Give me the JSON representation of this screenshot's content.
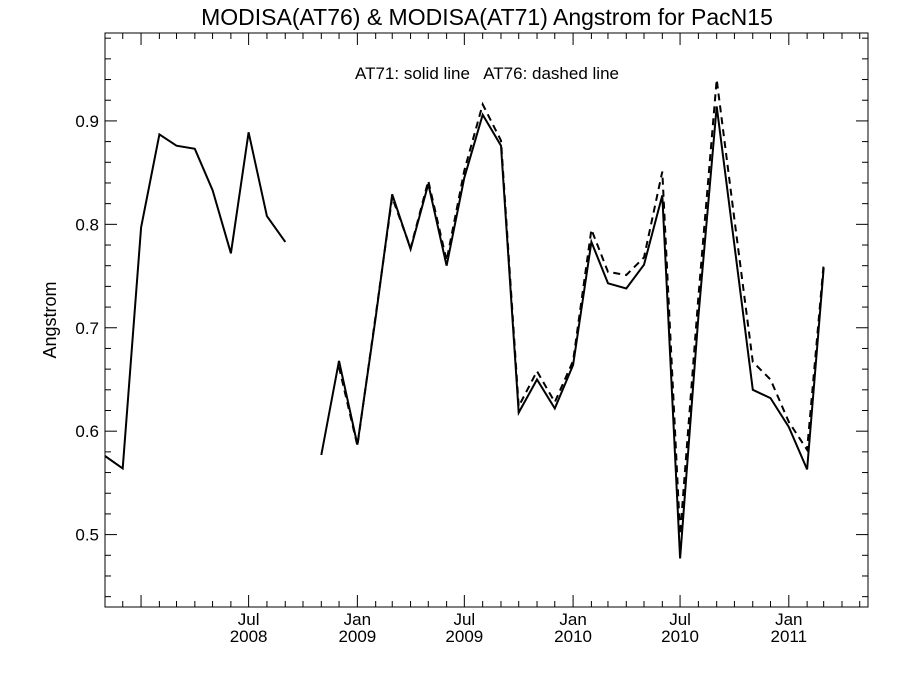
{
  "chart_data": {
    "type": "line",
    "title": "MODISA(AT76) & MODISA(AT71)  Angstrom for PacN15",
    "annotation": "AT71: solid line   AT76: dashed line",
    "xlabel": "",
    "ylabel": "Angstrom",
    "ylim": [
      0.43,
      0.985
    ],
    "yticks": [
      "0.5",
      "0.6",
      "0.7",
      "0.8",
      "0.9"
    ],
    "xlim": [
      "2007-11-01",
      "2011-05-15"
    ],
    "x_tick_labels": [
      {
        "date": "2008-07-01",
        "month": "Jul",
        "year": "2008"
      },
      {
        "date": "2009-01-01",
        "month": "Jan",
        "year": "2009"
      },
      {
        "date": "2009-07-01",
        "month": "Jul",
        "year": "2009"
      },
      {
        "date": "2010-01-01",
        "month": "Jan",
        "year": "2010"
      },
      {
        "date": "2010-07-01",
        "month": "Jul",
        "year": "2010"
      },
      {
        "date": "2011-01-01",
        "month": "Jan",
        "year": "2011"
      }
    ],
    "grid": false,
    "x": [
      "2007-11",
      "2007-12",
      "2008-01",
      "2008-02",
      "2008-03",
      "2008-04",
      "2008-05",
      "2008-06",
      "2008-07",
      "2008-08",
      "2008-09",
      "2008-10",
      "2008-11",
      "2008-12",
      "2009-01",
      "2009-02",
      "2009-03",
      "2009-04",
      "2009-05",
      "2009-06",
      "2009-07",
      "2009-08",
      "2009-09",
      "2009-10",
      "2009-11",
      "2009-12",
      "2010-01",
      "2010-02",
      "2010-03",
      "2010-04",
      "2010-05",
      "2010-06",
      "2010-07",
      "2010-08",
      "2010-09",
      "2010-10",
      "2010-11",
      "2010-12",
      "2011-01",
      "2011-02",
      "2011-03",
      "2011-04",
      "2011-05"
    ],
    "series": [
      {
        "name": "AT71",
        "style": "solid",
        "color": "#000000",
        "values": [
          0.576,
          0.564,
          0.797,
          0.887,
          0.876,
          0.873,
          0.833,
          0.772,
          0.889,
          0.808,
          0.783,
          null,
          0.577,
          0.668,
          0.587,
          0.71,
          0.829,
          0.776,
          0.839,
          0.76,
          0.845,
          0.906,
          0.876,
          0.618,
          0.65,
          0.622,
          0.664,
          0.783,
          0.743,
          0.738,
          0.761,
          0.828,
          0.477,
          0.711,
          0.914,
          0.78,
          0.64,
          0.632,
          0.604,
          0.563,
          0.758,
          null,
          null
        ]
      },
      {
        "name": "AT76",
        "style": "dashed",
        "color": "#000000",
        "values": [
          null,
          null,
          null,
          null,
          null,
          null,
          null,
          null,
          null,
          null,
          null,
          null,
          null,
          0.662,
          0.586,
          0.712,
          0.826,
          0.777,
          0.842,
          0.765,
          0.852,
          0.916,
          0.881,
          0.624,
          0.658,
          0.628,
          0.668,
          0.795,
          0.754,
          0.751,
          0.768,
          0.851,
          0.5,
          0.73,
          0.94,
          0.805,
          0.667,
          0.65,
          0.609,
          0.582,
          0.762,
          null,
          null
        ]
      }
    ]
  }
}
